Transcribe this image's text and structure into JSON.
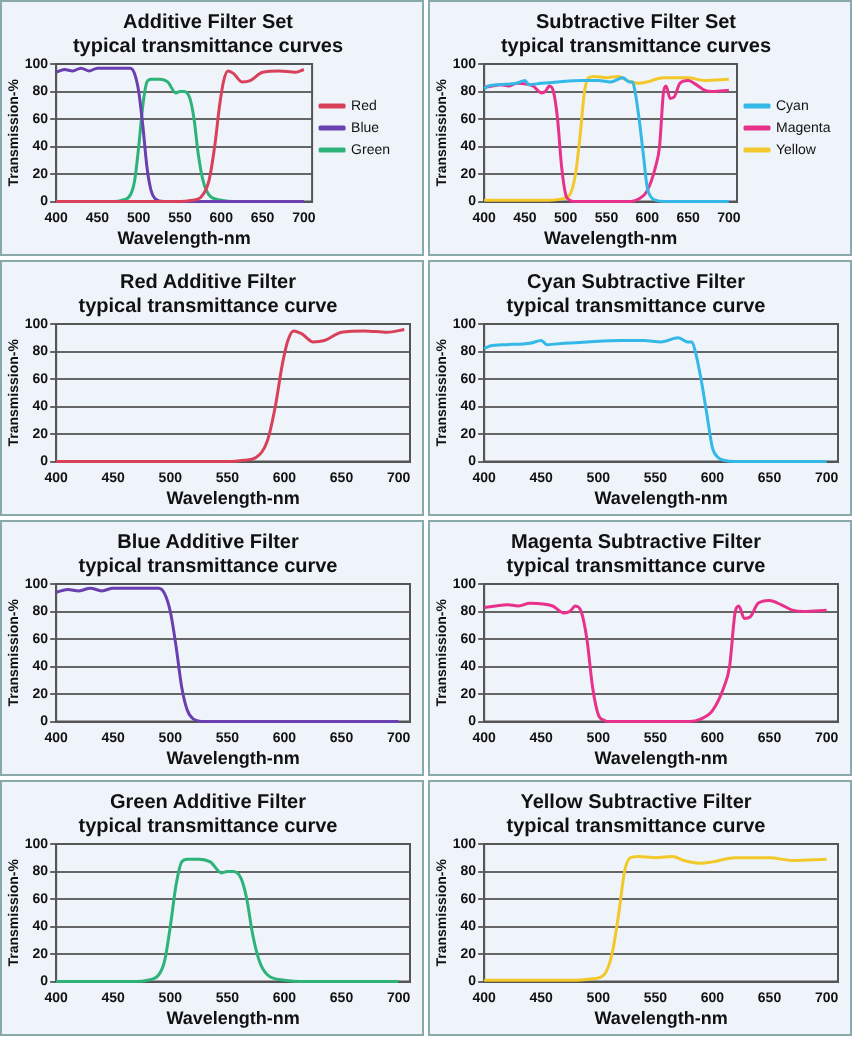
{
  "chart_data": [
    {
      "type": "line",
      "title": "Additive Filter Set",
      "subtitle": "typical transmittance curves",
      "xlabel": "Wavelength-nm",
      "ylabel": "Transmission-%",
      "xlim": [
        400,
        710
      ],
      "xticks": [
        400,
        450,
        500,
        550,
        600,
        650,
        700
      ],
      "ylim": [
        0,
        100
      ],
      "yticks": [
        0,
        20,
        40,
        60,
        80,
        100
      ],
      "grid": "y",
      "legend": "right",
      "marker": "none",
      "series": [
        {
          "name": "Red",
          "color": "#d9405a",
          "x": [
            400,
            550,
            565,
            575,
            585,
            592,
            598,
            603,
            608,
            615,
            625,
            635,
            650,
            670,
            690,
            700
          ],
          "values": [
            0,
            0,
            1,
            3,
            15,
            40,
            70,
            88,
            95,
            93,
            87,
            88,
            94,
            95,
            94,
            96
          ]
        },
        {
          "name": "Blue",
          "color": "#6a3fb0",
          "x": [
            400,
            410,
            420,
            430,
            440,
            450,
            470,
            490,
            495,
            500,
            505,
            510,
            515,
            520,
            530,
            700
          ],
          "values": [
            94,
            96,
            95,
            97,
            95,
            97,
            97,
            97,
            93,
            80,
            55,
            25,
            8,
            2,
            0,
            0
          ]
        },
        {
          "name": "Green",
          "color": "#2db37a",
          "x": [
            400,
            470,
            480,
            490,
            495,
            500,
            505,
            510,
            515,
            525,
            535,
            545,
            550,
            555,
            562,
            567,
            572,
            578,
            585,
            600,
            620,
            700
          ],
          "values": [
            0,
            0,
            1,
            5,
            15,
            40,
            70,
            87,
            89,
            89,
            87,
            79,
            80,
            80,
            75,
            60,
            35,
            15,
            5,
            1,
            0,
            0
          ]
        }
      ]
    },
    {
      "type": "line",
      "title": "Subtractive Filter Set",
      "subtitle": "typical transmittance curves",
      "xlabel": "Wavelength-nm",
      "ylabel": "Transmission-%",
      "xlim": [
        400,
        710
      ],
      "xticks": [
        400,
        450,
        500,
        550,
        600,
        650,
        700
      ],
      "ylim": [
        0,
        100
      ],
      "yticks": [
        0,
        20,
        40,
        60,
        80,
        100
      ],
      "grid": "y",
      "legend": "right",
      "marker": "none",
      "series": [
        {
          "name": "Cyan",
          "color": "#33b8e8",
          "x": [
            400,
            405,
            420,
            440,
            450,
            455,
            470,
            490,
            520,
            540,
            555,
            570,
            578,
            582,
            585,
            590,
            595,
            600,
            605,
            610,
            620,
            700
          ],
          "values": [
            82,
            84,
            85,
            86,
            88,
            85,
            86,
            87,
            88,
            88,
            87,
            90,
            87,
            87,
            80,
            60,
            35,
            10,
            3,
            1,
            0,
            0
          ]
        },
        {
          "name": "Magenta",
          "color": "#e8318a",
          "x": [
            400,
            410,
            420,
            430,
            440,
            460,
            470,
            475,
            480,
            485,
            490,
            495,
            500,
            505,
            510,
            580,
            590,
            600,
            610,
            615,
            620,
            623,
            628,
            633,
            640,
            650,
            660,
            670,
            680,
            700
          ],
          "values": [
            83,
            84,
            85,
            84,
            86,
            84,
            79,
            80,
            84,
            80,
            60,
            25,
            5,
            1,
            0,
            0,
            2,
            8,
            25,
            40,
            80,
            84,
            75,
            76,
            86,
            88,
            85,
            81,
            80,
            81
          ]
        },
        {
          "name": "Yellow",
          "color": "#f2c82a",
          "x": [
            400,
            480,
            495,
            505,
            512,
            518,
            523,
            528,
            535,
            550,
            565,
            575,
            590,
            600,
            620,
            650,
            670,
            700
          ],
          "values": [
            1,
            1,
            2,
            5,
            20,
            50,
            80,
            90,
            91,
            90,
            91,
            88,
            86,
            87,
            90,
            90,
            88,
            89
          ]
        }
      ]
    },
    {
      "type": "line",
      "title": "Red Additive Filter",
      "subtitle": "typical transmittance curve",
      "xlabel": "Wavelength-nm",
      "ylabel": "Transmission-%",
      "xlim": [
        400,
        710
      ],
      "xticks": [
        400,
        450,
        500,
        550,
        600,
        650,
        700
      ],
      "ylim": [
        0,
        100
      ],
      "yticks": [
        0,
        20,
        40,
        60,
        80,
        100
      ],
      "grid": "y",
      "marker": "none",
      "series": [
        {
          "color": "#d9405a",
          "x": [
            400,
            550,
            565,
            575,
            585,
            592,
            598,
            603,
            608,
            615,
            625,
            635,
            650,
            670,
            690,
            705
          ],
          "values": [
            0,
            0,
            1,
            3,
            15,
            40,
            70,
            88,
            95,
            93,
            87,
            88,
            94,
            95,
            94,
            96
          ]
        }
      ]
    },
    {
      "type": "line",
      "title": "Cyan Subtractive Filter",
      "subtitle": "typical transmittance curve",
      "xlabel": "Wavelength-nm",
      "ylabel": "Transmission-%",
      "xlim": [
        400,
        710
      ],
      "xticks": [
        400,
        450,
        500,
        550,
        600,
        650,
        700
      ],
      "ylim": [
        0,
        100
      ],
      "yticks": [
        0,
        20,
        40,
        60,
        80,
        100
      ],
      "grid": "y",
      "marker": "none",
      "series": [
        {
          "color": "#33b8e8",
          "x": [
            400,
            405,
            420,
            440,
            450,
            455,
            470,
            490,
            520,
            540,
            555,
            570,
            578,
            582,
            585,
            590,
            595,
            600,
            605,
            610,
            620,
            700
          ],
          "values": [
            82,
            84,
            85,
            86,
            88,
            85,
            86,
            87,
            88,
            88,
            87,
            90,
            87,
            87,
            80,
            60,
            35,
            10,
            3,
            1,
            0,
            0
          ]
        }
      ]
    },
    {
      "type": "line",
      "title": "Blue Additive Filter",
      "subtitle": "typical transmittance curve",
      "xlabel": "Wavelength-nm",
      "ylabel": "Transmission-%",
      "xlim": [
        400,
        710
      ],
      "xticks": [
        400,
        450,
        500,
        550,
        600,
        650,
        700
      ],
      "ylim": [
        0,
        100
      ],
      "yticks": [
        0,
        20,
        40,
        60,
        80,
        100
      ],
      "grid": "y",
      "marker": "none",
      "series": [
        {
          "color": "#6a3fb0",
          "x": [
            400,
            410,
            420,
            430,
            440,
            450,
            470,
            490,
            495,
            500,
            505,
            510,
            515,
            520,
            530,
            700
          ],
          "values": [
            94,
            96,
            95,
            97,
            95,
            97,
            97,
            97,
            93,
            80,
            55,
            25,
            8,
            2,
            0,
            0
          ]
        }
      ]
    },
    {
      "type": "line",
      "title": "Magenta Subtractive Filter",
      "subtitle": "typical transmittance curve",
      "xlabel": "Wavelength-nm",
      "ylabel": "Transmission-%",
      "xlim": [
        400,
        710
      ],
      "xticks": [
        400,
        450,
        500,
        550,
        600,
        650,
        700
      ],
      "ylim": [
        0,
        100
      ],
      "yticks": [
        0,
        20,
        40,
        60,
        80,
        100
      ],
      "grid": "y",
      "marker": "none",
      "series": [
        {
          "color": "#e8318a",
          "x": [
            400,
            410,
            420,
            430,
            440,
            460,
            470,
            475,
            480,
            485,
            490,
            495,
            500,
            505,
            510,
            580,
            590,
            600,
            610,
            615,
            620,
            623,
            628,
            633,
            640,
            650,
            660,
            670,
            680,
            700
          ],
          "values": [
            83,
            84,
            85,
            84,
            86,
            84,
            79,
            80,
            84,
            80,
            60,
            25,
            5,
            1,
            0,
            0,
            2,
            8,
            25,
            40,
            80,
            84,
            75,
            76,
            86,
            88,
            85,
            81,
            80,
            81
          ]
        }
      ]
    },
    {
      "type": "line",
      "title": "Green Additive Filter",
      "subtitle": "typical transmittance curve",
      "xlabel": "Wavelength-nm",
      "ylabel": "Transmission-%",
      "xlim": [
        400,
        710
      ],
      "xticks": [
        400,
        450,
        500,
        550,
        600,
        650,
        700
      ],
      "ylim": [
        0,
        100
      ],
      "yticks": [
        0,
        20,
        40,
        60,
        80,
        100
      ],
      "grid": "y",
      "marker": "none",
      "series": [
        {
          "color": "#2db37a",
          "x": [
            400,
            470,
            480,
            490,
            495,
            500,
            505,
            510,
            515,
            525,
            535,
            545,
            550,
            555,
            562,
            567,
            572,
            578,
            585,
            600,
            620,
            700
          ],
          "values": [
            0,
            0,
            1,
            5,
            15,
            40,
            70,
            87,
            89,
            89,
            87,
            79,
            80,
            80,
            75,
            60,
            35,
            15,
            5,
            1,
            0,
            0
          ]
        }
      ]
    },
    {
      "type": "line",
      "title": "Yellow Subtractive Filter",
      "subtitle": "typical transmittance curve",
      "xlabel": "Wavelength-nm",
      "ylabel": "Transmission-%",
      "xlim": [
        400,
        710
      ],
      "xticks": [
        400,
        450,
        500,
        550,
        600,
        650,
        700
      ],
      "ylim": [
        0,
        100
      ],
      "yticks": [
        0,
        20,
        40,
        60,
        80,
        100
      ],
      "grid": "y",
      "marker": "none",
      "series": [
        {
          "color": "#f2c82a",
          "x": [
            400,
            480,
            495,
            505,
            512,
            518,
            523,
            528,
            535,
            550,
            565,
            575,
            590,
            600,
            620,
            650,
            670,
            700
          ],
          "values": [
            1,
            1,
            2,
            5,
            20,
            50,
            80,
            90,
            91,
            90,
            91,
            88,
            86,
            87,
            90,
            90,
            88,
            89
          ]
        }
      ]
    }
  ]
}
